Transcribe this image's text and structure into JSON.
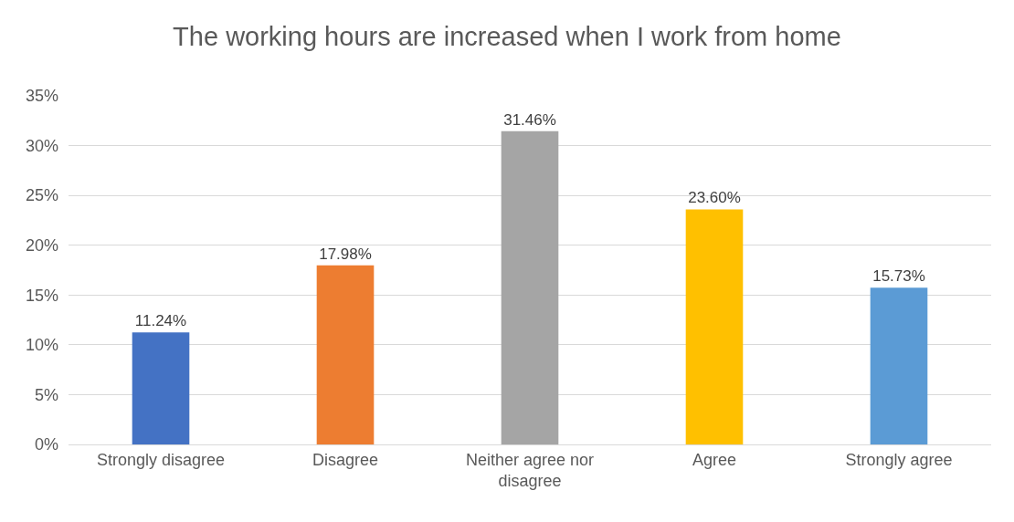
{
  "chart_data": {
    "type": "bar",
    "title": "The working hours are increased when I work from home",
    "categories": [
      "Strongly disagree",
      "Disagree",
      "Neither agree nor disagree",
      "Agree",
      "Strongly agree"
    ],
    "values": [
      11.24,
      17.98,
      31.46,
      23.6,
      15.73
    ],
    "value_labels": [
      "11.24%",
      "17.98%",
      "31.46%",
      "23.60%",
      "15.73%"
    ],
    "colors": [
      "#4472c4",
      "#ed7d31",
      "#a5a5a5",
      "#ffc000",
      "#5b9bd5"
    ],
    "ylim": [
      0,
      35
    ],
    "yticks": [
      {
        "value": 0,
        "label": "0%"
      },
      {
        "value": 5,
        "label": "5%"
      },
      {
        "value": 10,
        "label": "10%"
      },
      {
        "value": 15,
        "label": "15%"
      },
      {
        "value": 20,
        "label": "20%"
      },
      {
        "value": 25,
        "label": "25%"
      },
      {
        "value": 30,
        "label": "30%"
      },
      {
        "value": 35,
        "label": "35%"
      }
    ],
    "grid": "y",
    "legend": false
  }
}
